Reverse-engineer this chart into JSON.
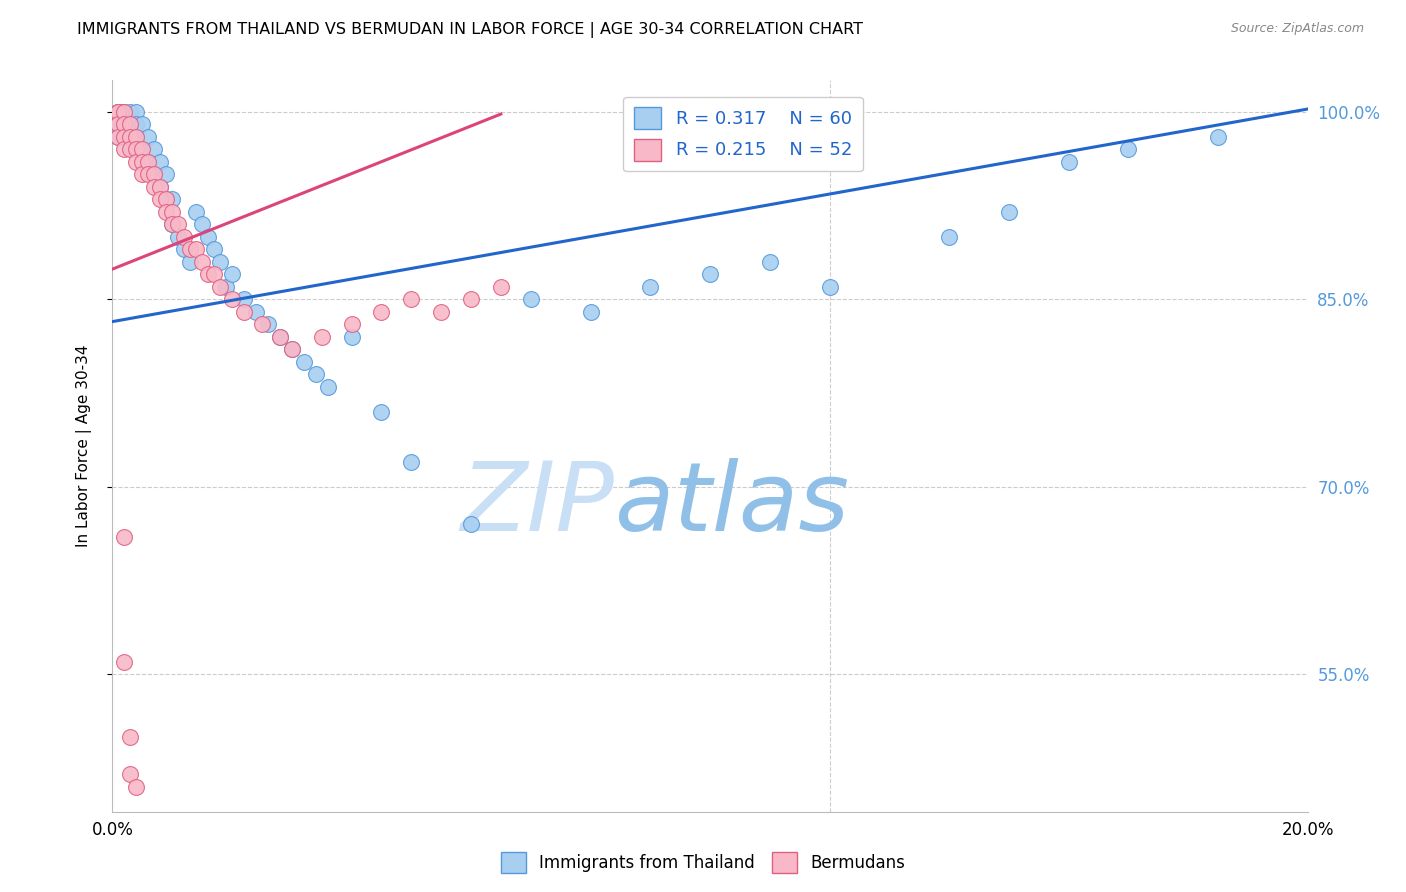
{
  "title": "IMMIGRANTS FROM THAILAND VS BERMUDAN IN LABOR FORCE | AGE 30-34 CORRELATION CHART",
  "source": "Source: ZipAtlas.com",
  "ylabel": "In Labor Force | Age 30-34",
  "xmin": 0.0,
  "xmax": 0.2,
  "ymin": 0.44,
  "ymax": 1.025,
  "yticks": [
    0.55,
    0.7,
    0.85,
    1.0
  ],
  "ytick_labels": [
    "55.0%",
    "70.0%",
    "85.0%",
    "100.0%"
  ],
  "legend_blue_r": "R = 0.317",
  "legend_blue_n": "N = 60",
  "legend_pink_r": "R = 0.215",
  "legend_pink_n": "N = 52",
  "blue_scatter_color": "#a8cff0",
  "blue_edge_color": "#5599dd",
  "pink_scatter_color": "#f8b8c8",
  "pink_edge_color": "#e06080",
  "blue_line_color": "#2266cc",
  "pink_line_color": "#dd4477",
  "legend_text_color": "#2266cc",
  "right_axis_color": "#5599dd",
  "watermark_color": "#ddeeff",
  "grid_color": "#cccccc",
  "thailand_x": [
    0.001,
    0.001,
    0.001,
    0.001,
    0.001,
    0.002,
    0.002,
    0.002,
    0.002,
    0.003,
    0.003,
    0.003,
    0.004,
    0.004,
    0.004,
    0.005,
    0.005,
    0.006,
    0.006,
    0.007,
    0.007,
    0.008,
    0.008,
    0.009,
    0.009,
    0.01,
    0.01,
    0.011,
    0.012,
    0.013,
    0.014,
    0.015,
    0.016,
    0.017,
    0.018,
    0.019,
    0.02,
    0.022,
    0.024,
    0.026,
    0.028,
    0.03,
    0.032,
    0.034,
    0.036,
    0.04,
    0.045,
    0.05,
    0.06,
    0.07,
    0.08,
    0.09,
    0.1,
    0.11,
    0.12,
    0.14,
    0.15,
    0.16,
    0.17,
    0.185
  ],
  "thailand_y": [
    1.0,
    1.0,
    1.0,
    0.99,
    0.98,
    1.0,
    1.0,
    0.99,
    0.98,
    1.0,
    0.99,
    0.98,
    1.0,
    0.99,
    0.98,
    0.99,
    0.97,
    0.98,
    0.96,
    0.97,
    0.95,
    0.96,
    0.94,
    0.95,
    0.93,
    0.93,
    0.91,
    0.9,
    0.89,
    0.88,
    0.92,
    0.91,
    0.9,
    0.89,
    0.88,
    0.86,
    0.87,
    0.85,
    0.84,
    0.83,
    0.82,
    0.81,
    0.8,
    0.79,
    0.78,
    0.82,
    0.76,
    0.72,
    0.67,
    0.85,
    0.84,
    0.86,
    0.87,
    0.88,
    0.86,
    0.9,
    0.92,
    0.96,
    0.97,
    0.98
  ],
  "bermuda_x": [
    0.001,
    0.001,
    0.001,
    0.001,
    0.002,
    0.002,
    0.002,
    0.002,
    0.003,
    0.003,
    0.003,
    0.004,
    0.004,
    0.004,
    0.005,
    0.005,
    0.005,
    0.006,
    0.006,
    0.007,
    0.007,
    0.008,
    0.008,
    0.009,
    0.009,
    0.01,
    0.01,
    0.011,
    0.012,
    0.013,
    0.014,
    0.015,
    0.016,
    0.017,
    0.018,
    0.02,
    0.022,
    0.025,
    0.028,
    0.03,
    0.035,
    0.04,
    0.045,
    0.05,
    0.055,
    0.06,
    0.065,
    0.002,
    0.002,
    0.003,
    0.003,
    0.004
  ],
  "bermuda_y": [
    1.0,
    1.0,
    0.99,
    0.98,
    1.0,
    0.99,
    0.98,
    0.97,
    0.99,
    0.98,
    0.97,
    0.98,
    0.97,
    0.96,
    0.97,
    0.96,
    0.95,
    0.96,
    0.95,
    0.95,
    0.94,
    0.94,
    0.93,
    0.93,
    0.92,
    0.92,
    0.91,
    0.91,
    0.9,
    0.89,
    0.89,
    0.88,
    0.87,
    0.87,
    0.86,
    0.85,
    0.84,
    0.83,
    0.82,
    0.81,
    0.82,
    0.83,
    0.84,
    0.85,
    0.84,
    0.85,
    0.86,
    0.66,
    0.56,
    0.5,
    0.47,
    0.46
  ],
  "blue_trend_x": [
    0.0,
    0.2
  ],
  "blue_trend_y": [
    0.832,
    1.002
  ],
  "pink_trend_x": [
    0.0,
    0.065
  ],
  "pink_trend_y": [
    0.874,
    0.998
  ]
}
